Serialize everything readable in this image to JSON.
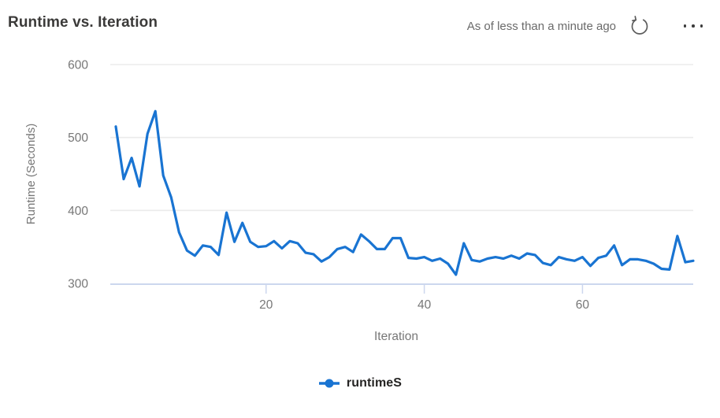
{
  "header": {
    "title": "Runtime vs. Iteration",
    "as_of": "As of less than a minute ago",
    "icons": {
      "refresh": "circular-arrow-refresh",
      "more": "horizontal-ellipsis"
    }
  },
  "colors": {
    "line": "#1974d2",
    "grid": "#ebebeb",
    "axis": "#ccd7ee",
    "tick_label": "#777777",
    "axis_title": "#777777",
    "title": "#3b3a39",
    "muted": "#6a6a6a",
    "legend_text": "#252423"
  },
  "chart_data": {
    "type": "line",
    "title": "Runtime vs. Iteration",
    "xlabel": "Iteration",
    "ylabel": "Runtime (Seconds)",
    "xlim": [
      1,
      74
    ],
    "ylim": [
      300,
      600
    ],
    "xticks": [
      20,
      40,
      60
    ],
    "yticks": [
      300,
      400,
      500,
      600
    ],
    "grid": "horizontal",
    "legend_position": "bottom",
    "series": [
      {
        "name": "runtimeS",
        "color": "#1974d2",
        "x": [
          1,
          2,
          3,
          4,
          5,
          6,
          7,
          8,
          9,
          10,
          11,
          12,
          13,
          14,
          15,
          16,
          17,
          18,
          19,
          20,
          21,
          22,
          23,
          24,
          25,
          26,
          27,
          28,
          29,
          30,
          31,
          32,
          33,
          34,
          35,
          36,
          37,
          38,
          39,
          40,
          41,
          42,
          43,
          44,
          45,
          46,
          47,
          48,
          49,
          50,
          51,
          52,
          53,
          54,
          55,
          56,
          57,
          58,
          59,
          60,
          61,
          62,
          63,
          64,
          65,
          66,
          67,
          68,
          69,
          70,
          71,
          72,
          73,
          74
        ],
        "values": [
          515,
          443,
          472,
          433,
          505,
          536,
          448,
          418,
          370,
          345,
          338,
          352,
          350,
          339,
          397,
          357,
          383,
          357,
          350,
          351,
          358,
          348,
          358,
          355,
          342,
          340,
          330,
          336,
          347,
          350,
          343,
          367,
          358,
          347,
          347,
          362,
          362,
          335,
          334,
          336,
          331,
          334,
          327,
          312,
          355,
          332,
          330,
          334,
          336,
          334,
          338,
          334,
          341,
          339,
          328,
          325,
          336,
          333,
          331,
          336,
          324,
          335,
          338,
          352,
          325,
          333,
          333,
          331,
          327,
          320,
          319,
          365,
          329,
          331
        ]
      }
    ]
  }
}
